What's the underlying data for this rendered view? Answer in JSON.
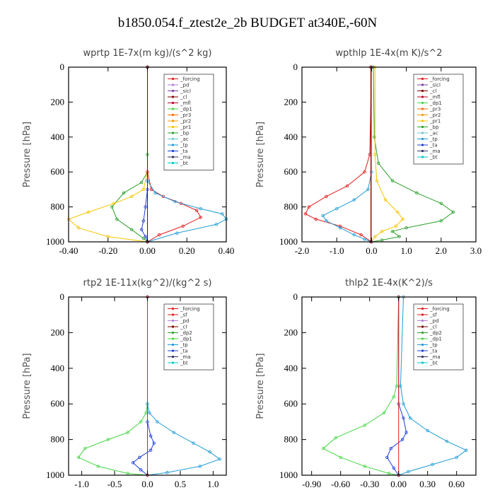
{
  "title": "b1850.054.f_ztest2e_2b  BUDGET at340E,-60N",
  "chart_data": [
    {
      "type": "line",
      "title": "wprtp   1E-7x(m kg)/(s^2 kg)",
      "ylabel": "Pressure [hPa]",
      "xlim": [
        -0.4,
        0.4
      ],
      "xticks": [
        -0.4,
        -0.2,
        0.0,
        0.2,
        0.4
      ],
      "xtick_labels": [
        "-0.40",
        "-0.20",
        "0.00",
        "0.20",
        "0.40"
      ],
      "ylim": [
        1000,
        0
      ],
      "yticks": [
        0,
        200,
        400,
        600,
        800,
        1000
      ],
      "legend": [
        "_forcing",
        "_pd",
        "_sicl",
        "_cl",
        "_mfl",
        "_dp1",
        "_pr3",
        "_pr2",
        "_pr1",
        "_bp",
        "_ac",
        "_tp",
        "_ta",
        "_ma",
        "_bt"
      ],
      "series": [
        {
          "name": "_bp",
          "color": "#2ca02c",
          "x": [
            0,
            0,
            0,
            -0.03,
            -0.12,
            -0.18,
            -0.155,
            -0.08,
            -0.02,
            0
          ],
          "y": [
            0,
            500,
            600,
            660,
            720,
            800,
            870,
            930,
            980,
            1000
          ]
        },
        {
          "name": "_pr1",
          "color": "#f5c400",
          "x": [
            0,
            0,
            -0.02,
            -0.08,
            -0.17,
            -0.3,
            -0.4,
            -0.35,
            -0.2,
            0
          ],
          "y": [
            0,
            600,
            700,
            740,
            780,
            830,
            870,
            920,
            970,
            1000
          ]
        },
        {
          "name": "_dp1",
          "color": "#e41a1c",
          "x": [
            0,
            0,
            0.02,
            0.08,
            0.17,
            0.25,
            0.27,
            0.18,
            0.06,
            0
          ],
          "y": [
            0,
            600,
            700,
            740,
            780,
            820,
            860,
            910,
            960,
            1000
          ]
        },
        {
          "name": "_tp",
          "color": "#1f9bd6",
          "x": [
            0,
            0,
            0.04,
            0.14,
            0.27,
            0.38,
            0.4,
            0.35,
            0.15,
            0
          ],
          "y": [
            0,
            650,
            720,
            770,
            810,
            840,
            870,
            900,
            950,
            1000
          ]
        },
        {
          "name": "_ta",
          "color": "#1f3fd6",
          "x": [
            0,
            0,
            -0.01,
            -0.02,
            -0.03,
            -0.01,
            0
          ],
          "y": [
            0,
            700,
            800,
            880,
            930,
            970,
            1000
          ]
        },
        {
          "name": "_forcing",
          "color": "#333333",
          "x": [
            0,
            0
          ],
          "y": [
            0,
            1000
          ]
        },
        {
          "name": "_mfl",
          "color": "#800000",
          "x": [
            0,
            0
          ],
          "y": [
            0,
            1000
          ]
        }
      ]
    },
    {
      "type": "line",
      "title": "wpthlp   1E-4x(m K)/s^2",
      "ylabel": "Pressure [hPa]",
      "xlim": [
        -2.0,
        3.0
      ],
      "xticks": [
        -2.0,
        -1.0,
        0.0,
        1.0,
        2.0,
        3.0
      ],
      "xtick_labels": [
        "-2.0",
        "-1.0",
        "0.0",
        "1.0",
        "2.0",
        "3.0"
      ],
      "ylim": [
        1000,
        0
      ],
      "yticks": [
        0,
        200,
        400,
        600,
        800,
        1000
      ],
      "legend": [
        "_forcing",
        "_sicl",
        "_cl",
        "_mfl",
        "_dp1",
        "_pr3",
        "_pr2",
        "_pr1",
        "_bp",
        "_ac",
        "_tp",
        "_ta",
        "_ma",
        "_bt"
      ],
      "series": [
        {
          "name": "_bp",
          "color": "#2ca02c",
          "x": [
            0.05,
            0.08,
            0.2,
            0.6,
            1.3,
            2.0,
            2.35,
            2.0,
            1.0,
            0.6,
            0.8,
            0.3,
            0
          ],
          "y": [
            0,
            400,
            550,
            650,
            720,
            780,
            830,
            880,
            920,
            940,
            970,
            990,
            1000
          ]
        },
        {
          "name": "_dp1",
          "color": "#e41a1c",
          "x": [
            0,
            -0.05,
            -0.2,
            -0.7,
            -1.3,
            -1.8,
            -1.9,
            -1.6,
            -0.9,
            -0.3,
            0
          ],
          "y": [
            0,
            500,
            600,
            680,
            740,
            800,
            840,
            870,
            910,
            960,
            1000
          ]
        },
        {
          "name": "_pr1",
          "color": "#f5c400",
          "x": [
            0.1,
            0.1,
            0.15,
            0.4,
            0.75,
            0.9,
            0.7,
            0.3,
            0.1,
            0
          ],
          "y": [
            0,
            500,
            650,
            760,
            830,
            870,
            910,
            940,
            970,
            1000
          ]
        },
        {
          "name": "_tp",
          "color": "#1f9bd6",
          "x": [
            0,
            0,
            -0.1,
            -0.5,
            -1.0,
            -1.4,
            -1.3,
            -0.9,
            -0.5,
            -0.2,
            0
          ],
          "y": [
            0,
            600,
            700,
            760,
            810,
            850,
            880,
            920,
            960,
            985,
            1000
          ]
        },
        {
          "name": "_forcing",
          "color": "#b07fd6",
          "x": [
            0,
            0
          ],
          "y": [
            0,
            1000
          ]
        },
        {
          "name": "_mfl",
          "color": "#800000",
          "x": [
            -0.02,
            -0.02
          ],
          "y": [
            0,
            1000
          ]
        }
      ]
    },
    {
      "type": "line",
      "title": "rtp2   1E-11x(kg^2)/(kg^2 s)",
      "ylabel": "Pressure [hPa]",
      "xlim": [
        -1.2,
        1.2
      ],
      "xticks": [
        -1.0,
        -0.5,
        0.0,
        0.5,
        1.0
      ],
      "xtick_labels": [
        "-1.0",
        "-0.5",
        "0.0",
        "0.5",
        "1.0"
      ],
      "ylim": [
        1000,
        0
      ],
      "yticks": [
        0,
        200,
        400,
        600,
        800,
        1000
      ],
      "legend": [
        "_forcing",
        "_sf",
        "_pd",
        "_cl",
        "_dp2",
        "_dp1",
        "_tp",
        "_ta",
        "_ma",
        "_bt"
      ],
      "series": [
        {
          "name": "_dp1",
          "color": "#46d646",
          "x": [
            0,
            0,
            -0.02,
            -0.1,
            -0.3,
            -0.6,
            -0.95,
            -1.05,
            -0.75,
            -0.3,
            0
          ],
          "y": [
            0,
            600,
            650,
            700,
            760,
            800,
            850,
            900,
            950,
            990,
            1000
          ]
        },
        {
          "name": "_tp",
          "color": "#1f9bd6",
          "x": [
            0,
            0,
            0.03,
            0.15,
            0.4,
            0.7,
            0.95,
            1.1,
            0.8,
            0.3,
            0
          ],
          "y": [
            0,
            600,
            650,
            700,
            760,
            820,
            870,
            910,
            950,
            985,
            1000
          ]
        },
        {
          "name": "_ta",
          "color": "#1f3fd6",
          "x": [
            0,
            0,
            0.05,
            0.1,
            0.05,
            -0.12,
            -0.22,
            -0.1,
            0
          ],
          "y": [
            0,
            700,
            780,
            820,
            860,
            900,
            930,
            970,
            1000
          ]
        },
        {
          "name": "_forcing",
          "color": "#e41a1c",
          "x": [
            0,
            0
          ],
          "y": [
            0,
            1000
          ]
        }
      ]
    },
    {
      "type": "line",
      "title": "thlp2   1E-4x(K^2)/s",
      "ylabel": "Pressure [hPa]",
      "xlim": [
        -1.0,
        0.8
      ],
      "xticks": [
        -0.9,
        -0.6,
        -0.3,
        0.0,
        0.3,
        0.6
      ],
      "xtick_labels": [
        "-0.90",
        "-0.60",
        "-0.30",
        "0.00",
        "0.30",
        "0.60"
      ],
      "ylim": [
        1000,
        0
      ],
      "yticks": [
        0,
        200,
        400,
        600,
        800,
        1000
      ],
      "legend": [
        "_forcing",
        "_sf",
        "_pd",
        "_cl",
        "_dp2",
        "_dp1",
        "_tp",
        "_ta",
        "_ma",
        "_bt"
      ],
      "series": [
        {
          "name": "_dp1",
          "color": "#46d646",
          "x": [
            0,
            -0.02,
            -0.05,
            -0.15,
            -0.35,
            -0.65,
            -0.78,
            -0.6,
            -0.35,
            -0.1,
            0
          ],
          "y": [
            0,
            500,
            560,
            650,
            720,
            790,
            850,
            900,
            950,
            990,
            1000
          ]
        },
        {
          "name": "_tp",
          "color": "#1f9bd6",
          "x": [
            0.05,
            0.02,
            0.05,
            0.12,
            0.3,
            0.5,
            0.7,
            0.6,
            0.35,
            0.1,
            0
          ],
          "y": [
            0,
            500,
            600,
            680,
            750,
            810,
            860,
            900,
            940,
            980,
            1000
          ]
        },
        {
          "name": "_ta",
          "color": "#1f3fd6",
          "x": [
            0,
            0,
            0.05,
            0.08,
            0.04,
            -0.08,
            -0.12,
            -0.05,
            0
          ],
          "y": [
            0,
            600,
            680,
            760,
            800,
            850,
            900,
            960,
            1000
          ]
        },
        {
          "name": "_forcing",
          "color": "#e41a1c",
          "x": [
            0,
            0
          ],
          "y": [
            0,
            1000
          ]
        }
      ]
    }
  ]
}
